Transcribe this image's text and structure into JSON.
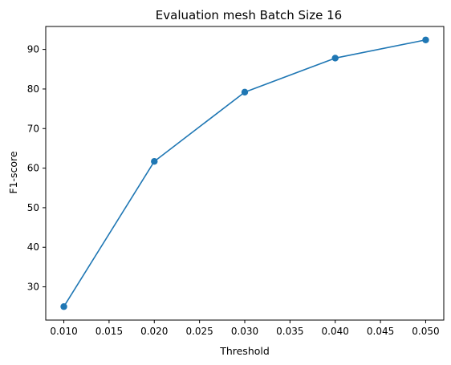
{
  "chart_data": {
    "type": "line",
    "title": "Evaluation mesh Batch Size 16",
    "xlabel": "Threshold",
    "ylabel": "F1-score",
    "x": [
      0.01,
      0.02,
      0.03,
      0.04,
      0.05
    ],
    "series": [
      {
        "values": [
          25.0,
          61.7,
          79.2,
          87.8,
          92.4
        ]
      }
    ],
    "xlim": [
      0.008,
      0.052
    ],
    "ylim": [
      21.6,
      95.8
    ],
    "x_ticks": [
      "0.010",
      "0.015",
      "0.020",
      "0.025",
      "0.030",
      "0.035",
      "0.040",
      "0.045",
      "0.050"
    ],
    "y_ticks": [
      "30",
      "40",
      "50",
      "60",
      "70",
      "80",
      "90"
    ],
    "grid": false,
    "marker": "circle",
    "line_color": "#1f77b4"
  }
}
